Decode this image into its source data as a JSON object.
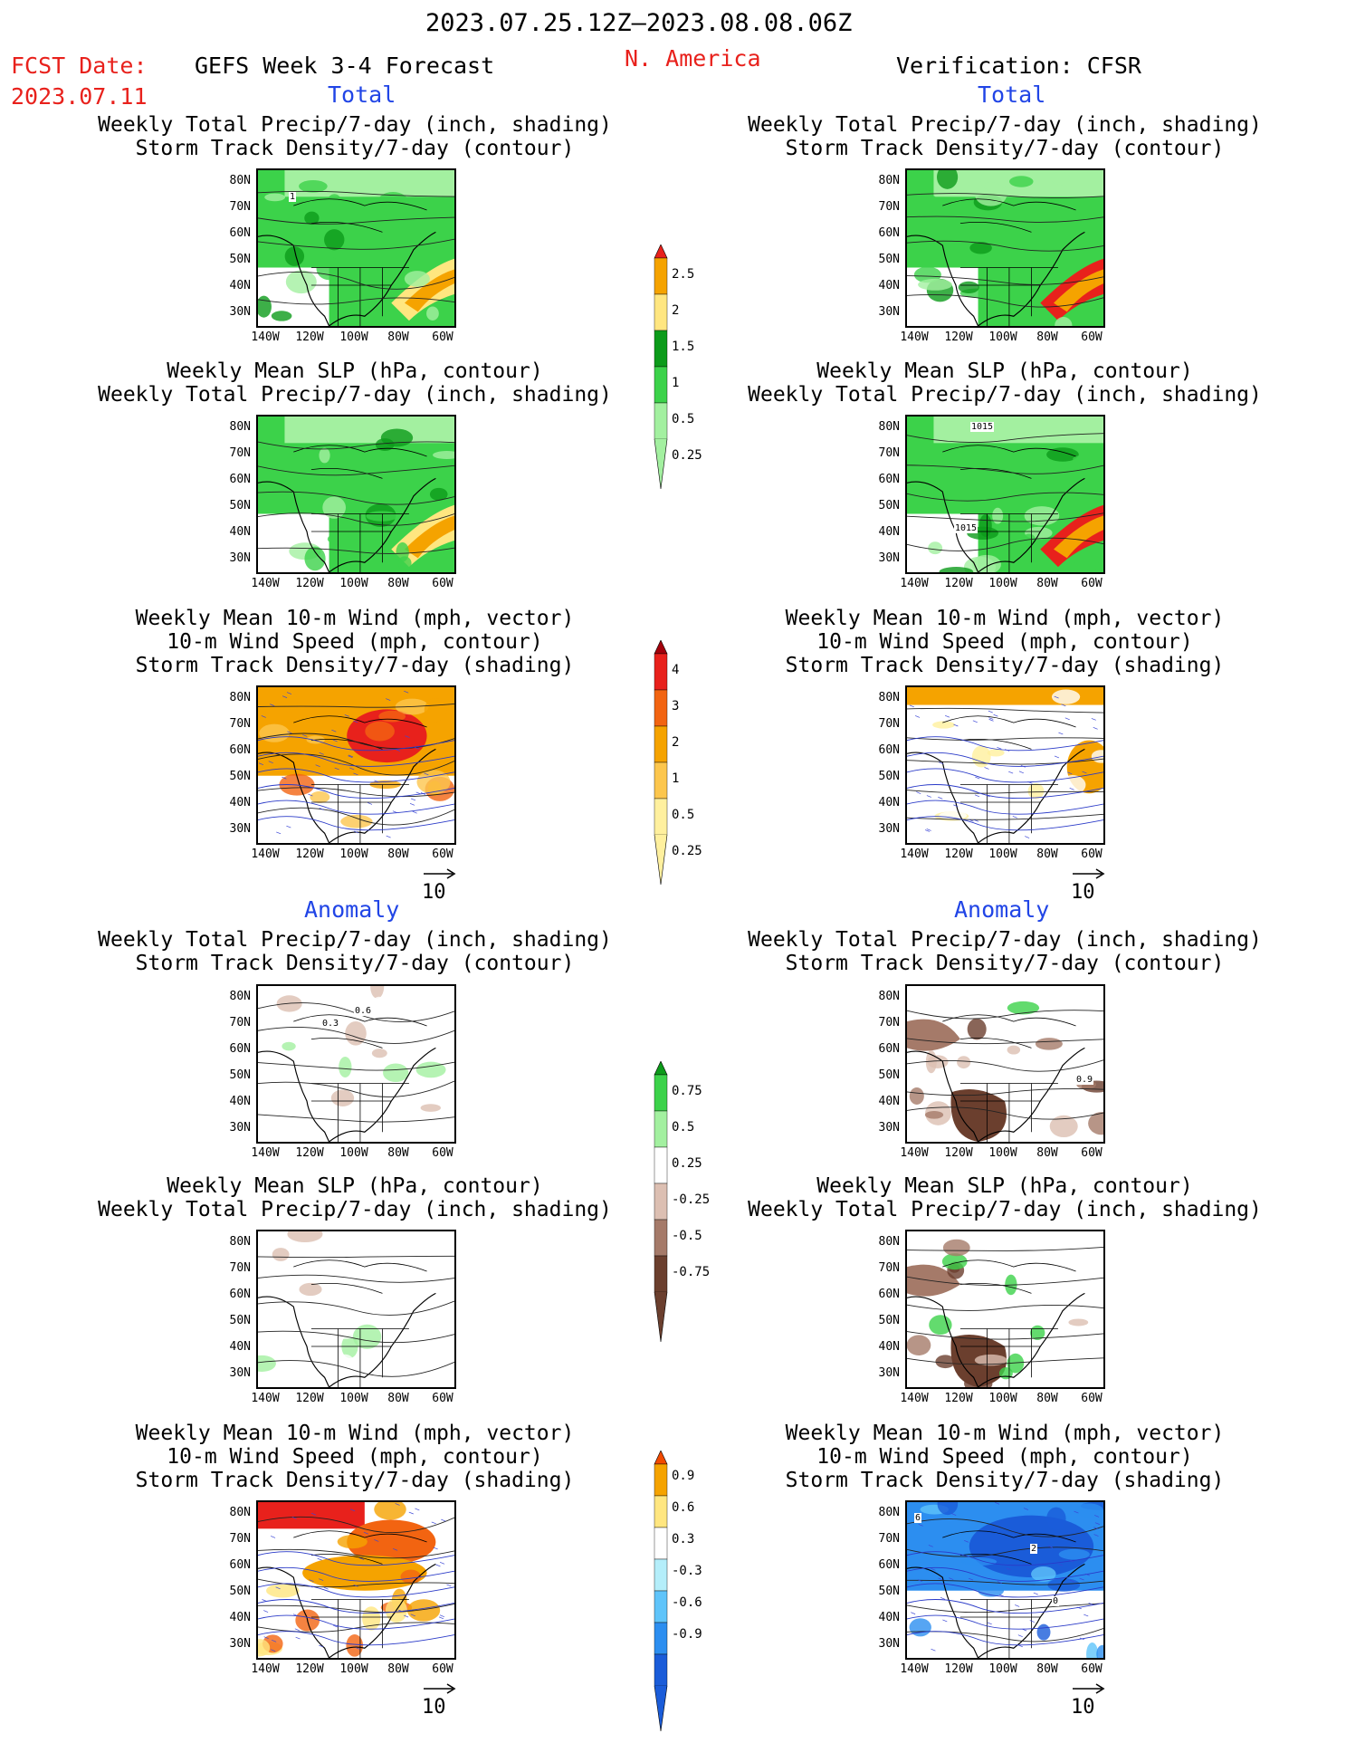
{
  "header": {
    "date_range": "2023.07.25.12Z–2023.08.08.06Z",
    "fcst_label": "FCST Date:",
    "fcst_date": "2023.07.11",
    "forecast_name": "GEFS Week 3-4 Forecast",
    "region": "N. America",
    "verification": "Verification: CFSR"
  },
  "sections": {
    "total": "Total",
    "anomaly": "Anomaly"
  },
  "panel_titles": {
    "precip_storm": [
      "Weekly Total Precip/7-day (inch, shading)",
      "Storm Track Density/7-day (contour)"
    ],
    "slp_precip": [
      "Weekly Mean SLP (hPa, contour)",
      "Weekly Total Precip/7-day (inch, shading)"
    ],
    "wind_storm": [
      "Weekly Mean 10-m Wind (mph, vector)",
      "10-m Wind Speed (mph, contour)",
      "Storm Track Density/7-day (shading)"
    ]
  },
  "axes": {
    "lat_labels": [
      "80N",
      "70N",
      "60N",
      "50N",
      "40N",
      "30N"
    ],
    "lon_labels": [
      "140W",
      "120W",
      "100W",
      "80W",
      "60W"
    ]
  },
  "contour_labels": {
    "total_fcst_precip_storm": "1",
    "total_ver_slp_top": "1015",
    "total_ver_slp_mid": "1015",
    "anom_fcst_storm_a": "0.6",
    "anom_fcst_storm_b": "0.3",
    "anom_ver_storm": "0.9",
    "anom_ver_wind_a": "6",
    "anom_ver_wind_b": "2",
    "anom_ver_wind_c": "0"
  },
  "vector_ref": "10",
  "colorbars": {
    "total_precip": {
      "labels": [
        "2.5",
        "2",
        "1.5",
        "1",
        "0.5",
        "0.25"
      ],
      "colors": [
        "#e8211c",
        "#f5a300",
        "#ffe680",
        "#0c9b1a",
        "#3cd24a",
        "#a3f0a0"
      ]
    },
    "total_storm": {
      "labels": [
        "4",
        "3",
        "2",
        "1",
        "0.5",
        "0.25"
      ],
      "colors": [
        "#a3000b",
        "#e8211c",
        "#f26411",
        "#f5a300",
        "#fcc64d",
        "#fff09e"
      ]
    },
    "anom_precip": {
      "labels": [
        "0.75",
        "0.5",
        "0.25",
        "-0.25",
        "-0.5",
        "-0.75"
      ],
      "colors": [
        "#0c9b1a",
        "#3cd24a",
        "#a3f0a0",
        "#ffffff",
        "#dcbfb2",
        "#a57a69",
        "#6b3f2e"
      ]
    },
    "anom_storm": {
      "labels": [
        "0.9",
        "0.6",
        "0.3",
        "-0.3",
        "-0.6",
        "-0.9"
      ],
      "colors": [
        "#f24a00",
        "#f5a300",
        "#ffe680",
        "#ffffff",
        "#b4eefa",
        "#5fc4fa",
        "#2c8ef0",
        "#1a5cd9"
      ]
    }
  },
  "colors": {
    "accent_red": "#e8211c",
    "accent_blue": "#2145e6"
  }
}
